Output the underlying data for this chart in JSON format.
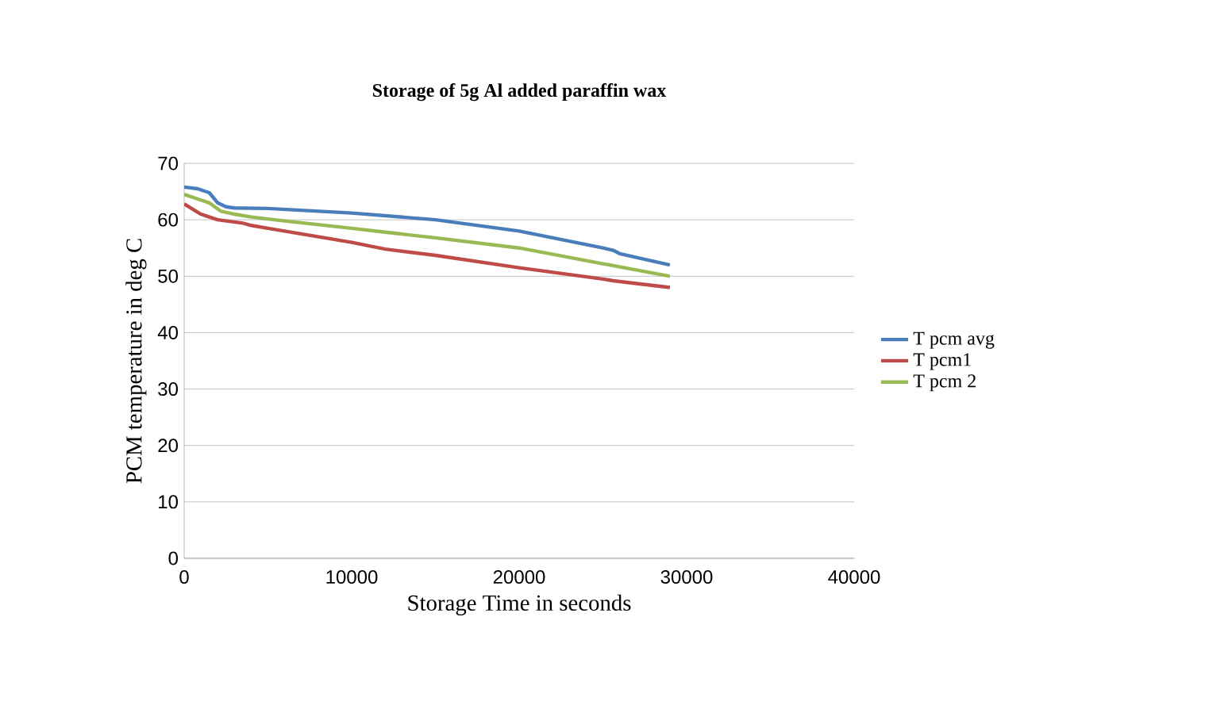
{
  "chart_data": {
    "type": "line",
    "title": "Storage of 5g Al added paraffin wax",
    "xlabel": "Storage Time in seconds",
    "ylabel": "PCM temperature in deg C",
    "xlim": [
      0,
      40000
    ],
    "xticks": [
      0,
      10000,
      20000,
      30000,
      40000
    ],
    "ylim": [
      0,
      70
    ],
    "yticks": [
      0,
      10,
      20,
      30,
      40,
      50,
      60,
      70
    ],
    "grid": "y",
    "legend": "right",
    "marker": "none",
    "line_style": "solid",
    "series": [
      {
        "name": "T pcm avg",
        "color": "#4a7ebb",
        "x": [
          0,
          800,
          1500,
          2000,
          2500,
          3000,
          5000,
          10000,
          15000,
          20000,
          25000,
          25600,
          26000,
          29000
        ],
        "values": [
          65.8,
          65.5,
          64.8,
          63,
          62.3,
          62.1,
          62,
          61.2,
          60,
          58,
          55,
          54.6,
          54,
          52
        ]
      },
      {
        "name": "T pcm1",
        "color": "#be4b48",
        "x": [
          0,
          1000,
          2000,
          3500,
          4000,
          5000,
          10000,
          12000,
          15000,
          20000,
          25000,
          25600,
          29000
        ],
        "values": [
          62.8,
          61,
          60,
          59.4,
          59,
          58.5,
          56,
          54.8,
          53.7,
          51.5,
          49.5,
          49.2,
          48
        ]
      },
      {
        "name": "T pcm 2",
        "color": "#98b954",
        "x": [
          0,
          1500,
          2200,
          3000,
          4000,
          6000,
          10000,
          12000,
          15000,
          20000,
          25000,
          29000
        ],
        "values": [
          64.5,
          63,
          61.5,
          61,
          60.5,
          59.8,
          58.5,
          57.8,
          56.8,
          55,
          52.2,
          50
        ]
      }
    ]
  }
}
